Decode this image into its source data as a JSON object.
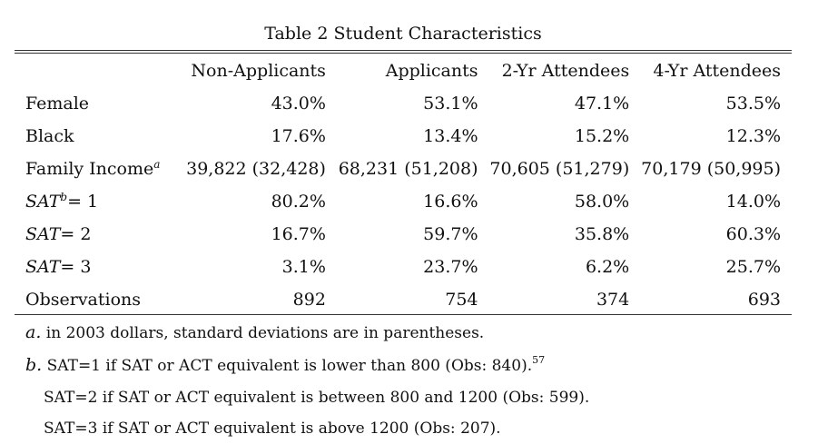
{
  "caption": "Table 2  Student Characteristics",
  "columns": [
    "Non-Applicants",
    "Applicants",
    "2-Yr Attendees",
    "4-Yr Attendees"
  ],
  "rows": [
    {
      "label": "Female",
      "values": [
        "43.0%",
        "53.1%",
        "47.1%",
        "53.5%"
      ]
    },
    {
      "label": "Black",
      "values": [
        "17.6%",
        "13.4%",
        "15.2%",
        "12.3%"
      ]
    },
    {
      "label": "Family Income",
      "label_sup": "a",
      "values": [
        "39,822 (32,428)",
        "68,231 (51,208)",
        "70,605 (51,279)",
        "70,179 (50,995)"
      ]
    },
    {
      "label": "SAT",
      "label_sup": "b",
      "label_suffix": "= 1",
      "values": [
        "80.2%",
        "16.6%",
        "58.0%",
        "14.0%"
      ]
    },
    {
      "label": "SAT",
      "label_suffix": "= 2",
      "values": [
        "16.7%",
        "59.7%",
        "35.8%",
        "60.3%"
      ]
    },
    {
      "label": "SAT",
      "label_suffix": "= 3",
      "values": [
        "3.1%",
        "23.7%",
        "6.2%",
        "25.7%"
      ]
    },
    {
      "label": "Observations",
      "values": [
        "892",
        "754",
        "374",
        "693"
      ]
    }
  ],
  "notes": {
    "a_mark": "a.",
    "a_text": " in 2003 dollars, standard deviations are in parentheses.",
    "b_mark": "b.",
    "b_text": " SAT=1 if SAT or ACT equivalent is lower than 800 (Obs: 840).",
    "b_sup": "57",
    "b_line2": "SAT=2 if SAT or ACT equivalent is between 800 and 1200 (Obs: 599).",
    "b_line3": "SAT=3 if SAT or ACT equivalent is above 1200 (Obs: 207)."
  }
}
